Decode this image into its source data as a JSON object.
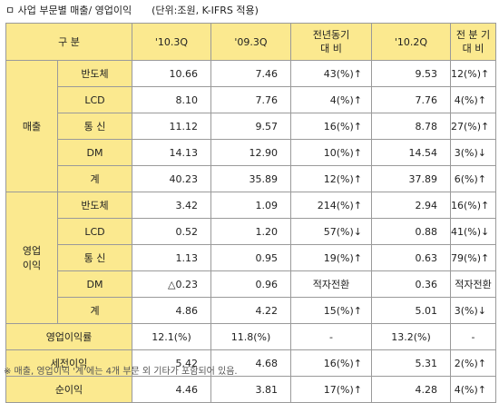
{
  "title": "ㅁ 사업 부문별 매출/ 영업이익",
  "unit": "(단위:조원, K-IFRS 적용)",
  "header": {
    "category": "구 분",
    "q10_3": "'10.3Q",
    "q09_3": "'09.3Q",
    "yoy_line1": "전년동기",
    "yoy_line2": "대 비",
    "q10_2": "'10.2Q",
    "qoq_line1": "전 분 기",
    "qoq_line2": "대 비"
  },
  "groups": {
    "sales": "매출",
    "op_line1": "영업",
    "op_line2": "이익"
  },
  "rows": [
    {
      "group": "sales",
      "label": "반도체",
      "v10_3": "10.66",
      "v09_3": "7.46",
      "yoy": "43(%)↑",
      "v10_2": "9.53",
      "qoq": "12(%)↑"
    },
    {
      "group": "sales",
      "label": "LCD",
      "v10_3": "8.10",
      "v09_3": "7.76",
      "yoy": "4(%)↑",
      "v10_2": "7.76",
      "qoq": "4(%)↑"
    },
    {
      "group": "sales",
      "label": "통 신",
      "v10_3": "11.12",
      "v09_3": "9.57",
      "yoy": "16(%)↑",
      "v10_2": "8.78",
      "qoq": "27(%)↑"
    },
    {
      "group": "sales",
      "label": "DM",
      "v10_3": "14.13",
      "v09_3": "12.90",
      "yoy": "10(%)↑",
      "v10_2": "14.54",
      "qoq": "3(%)↓"
    },
    {
      "group": "sales",
      "label": "계",
      "v10_3": "40.23",
      "v09_3": "35.89",
      "yoy": "12(%)↑",
      "v10_2": "37.89",
      "qoq": "6(%)↑"
    },
    {
      "group": "op",
      "label": "반도체",
      "v10_3": "3.42",
      "v09_3": "1.09",
      "yoy": "214(%)↑",
      "v10_2": "2.94",
      "qoq": "16(%)↑"
    },
    {
      "group": "op",
      "label": "LCD",
      "v10_3": "0.52",
      "v09_3": "1.20",
      "yoy": "57(%)↓",
      "v10_2": "0.88",
      "qoq": "41(%)↓"
    },
    {
      "group": "op",
      "label": "통 신",
      "v10_3": "1.13",
      "v09_3": "0.95",
      "yoy": "19(%)↑",
      "v10_2": "0.63",
      "qoq": "79(%)↑"
    },
    {
      "group": "op",
      "label": "DM",
      "v10_3": "△0.23",
      "v09_3": "0.96",
      "yoy": "적자전환",
      "v10_2": "0.36",
      "qoq": "적자전환"
    },
    {
      "group": "op",
      "label": "계",
      "v10_3": "4.86",
      "v09_3": "4.22",
      "yoy": "15(%)↑",
      "v10_2": "5.01",
      "qoq": "3(%)↓"
    }
  ],
  "summary_rows": [
    {
      "label": "영업이익률",
      "v10_3": "12.1(%)",
      "v09_3": "11.8(%)",
      "yoy": "-",
      "v10_2": "13.2(%)",
      "qoq": "-"
    },
    {
      "label": "세전이익",
      "v10_3": "5.42",
      "v09_3": "4.68",
      "yoy": "16(%)↑",
      "v10_2": "5.31",
      "qoq": "2(%)↑"
    },
    {
      "label": "순이익",
      "v10_3": "4.46",
      "v09_3": "3.81",
      "yoy": "17(%)↑",
      "v10_2": "4.28",
      "qoq": "4(%)↑"
    }
  ],
  "footnote": "※ 매출, 영업이익 '계'에는 4개 부문 외 기타가 포함되어 있음."
}
